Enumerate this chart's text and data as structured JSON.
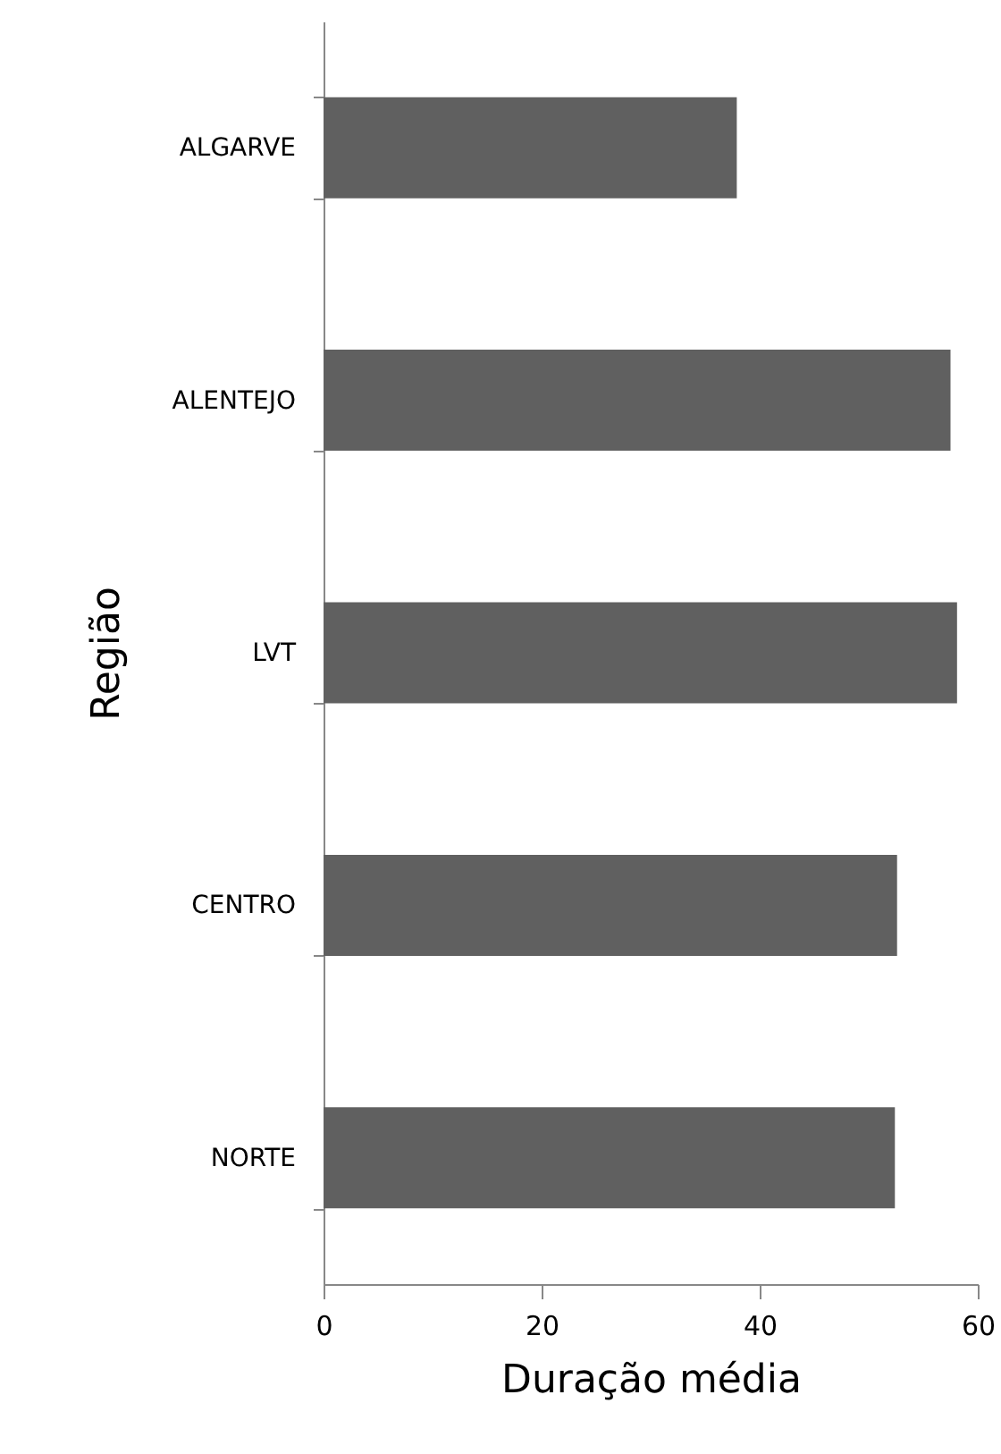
{
  "chart_data": {
    "type": "bar",
    "orientation": "horizontal",
    "xlabel": "Duração média",
    "ylabel": "Região",
    "categories": [
      "ALGARVE",
      "ALENTEJO",
      "LVT",
      "CENTRO",
      "NORTE"
    ],
    "values": [
      37.9,
      57.5,
      58.1,
      52.6,
      52.4
    ],
    "color": "#606060",
    "xlim": [
      0,
      60
    ],
    "xticks": [
      0,
      20,
      40,
      60
    ],
    "grid": false
  }
}
